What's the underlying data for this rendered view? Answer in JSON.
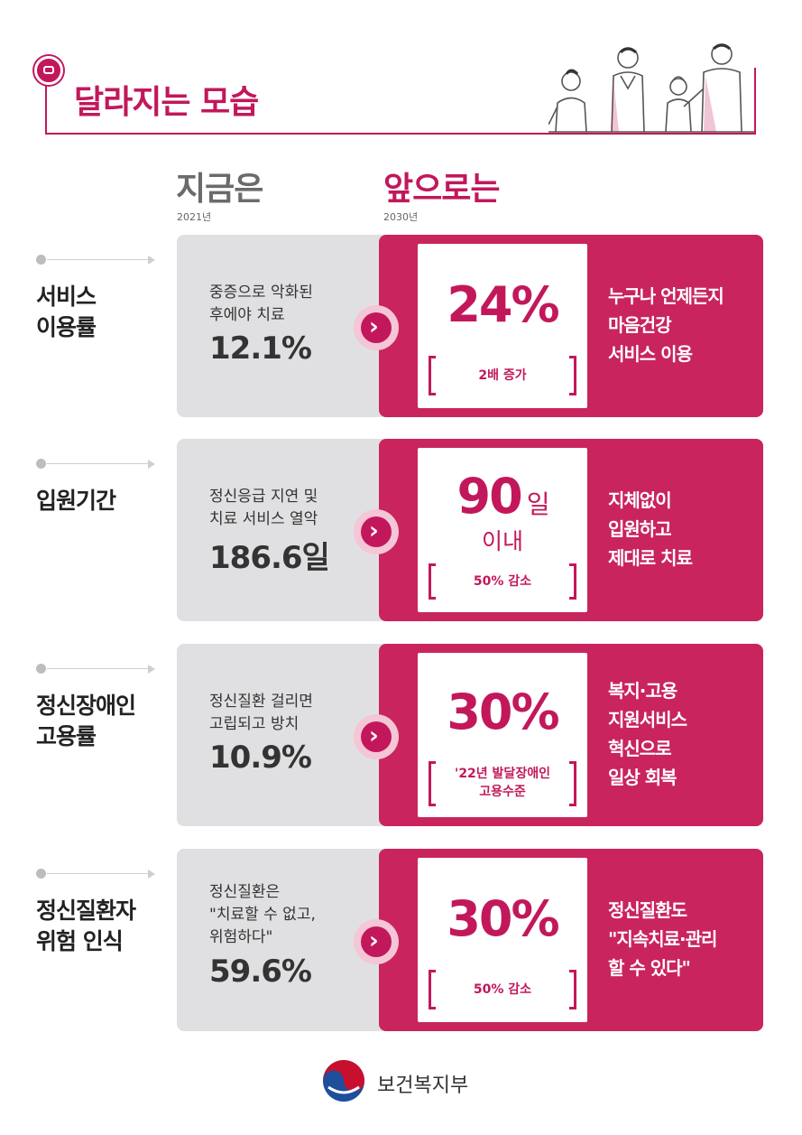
{
  "header": {
    "title": "달라지는 모습"
  },
  "columns": {
    "now": {
      "heading": "지금은",
      "year": "2021년"
    },
    "future": {
      "heading": "앞으로는",
      "year": "2030년"
    }
  },
  "rows": [
    {
      "label_lines": [
        "서비스",
        "이용률"
      ],
      "now_desc_lines": [
        "중증으로 악화된",
        "후에야 치료"
      ],
      "now_value": "12.1%",
      "future_value": "24%",
      "future_note_lines": [
        "2배 증가"
      ],
      "right_text_lines": [
        "누구나 언제든지",
        "마음건강",
        "서비스 이용"
      ]
    },
    {
      "label_lines": [
        "입원기간"
      ],
      "now_desc_lines": [
        "정신응급 지연 및",
        "치료 서비스 열악"
      ],
      "now_value": "186.6일",
      "future_value": "90",
      "future_unit": "일",
      "future_sub": "이내",
      "future_note_lines": [
        "50% 감소"
      ],
      "right_text_lines": [
        "지체없이",
        "입원하고",
        "제대로 치료"
      ]
    },
    {
      "label_lines": [
        "정신장애인",
        "고용률"
      ],
      "now_desc_lines": [
        "정신질환 걸리면",
        "고립되고 방치"
      ],
      "now_value": "10.9%",
      "future_value": "30%",
      "future_note_lines": [
        "'22년 발달장애인",
        "고용수준"
      ],
      "right_text_lines": [
        "복지·고용",
        "지원서비스",
        "혁신으로",
        "일상 회복"
      ]
    },
    {
      "label_lines": [
        "정신질환자",
        "위험 인식"
      ],
      "now_desc_lines": [
        "정신질환은",
        "\"치료할 수 없고,",
        "위험하다\""
      ],
      "now_value": "59.6%",
      "future_value": "30%",
      "future_note_lines": [
        "50% 감소"
      ],
      "right_text_lines": [
        "정신질환도",
        "\"지속치료·관리",
        "할 수 있다\""
      ]
    }
  ],
  "footer": {
    "org": "보건복지부"
  },
  "colors": {
    "accent": "#c2185b",
    "panel_pink": "#c9245e",
    "panel_gray": "#e0e0e2"
  },
  "icons": {
    "badge": "ribbon-badge-icon",
    "arrow": "chevron-right-icon",
    "logo": "taegeuk-logo-icon"
  }
}
